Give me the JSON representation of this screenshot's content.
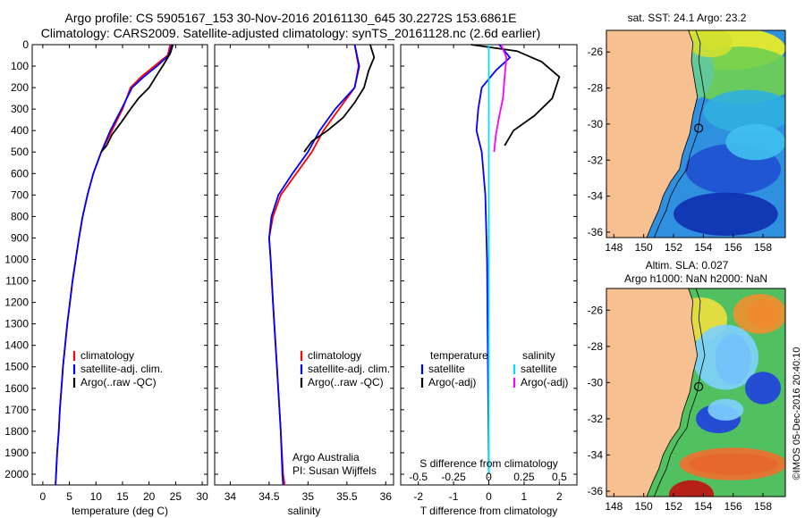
{
  "header": {
    "line1": "Argo profile: CS 5905167_153 30-Nov-2016 20161130_645 30.2272S 153.6861E",
    "line2": "Climatology: CARS2009. Satellite-adjusted climatology: synTS_20161128.nc (2.6d earlier)"
  },
  "footer": {
    "credit": "©IMOS 05-Dec-2016 20:40:10"
  },
  "colors": {
    "climatology": "#ff0000",
    "satellite": "#0000ff",
    "argo": "#000000",
    "sal_satellite": "#00e0ff",
    "sal_argo": "#ff00ff",
    "land": "#f7c090"
  },
  "chart_data": [
    {
      "type": "line",
      "name": "temperature-panel",
      "xlabel": "temperature (deg C)",
      "ylabel": "",
      "xlim": [
        -2,
        31
      ],
      "ylim": [
        2050,
        0
      ],
      "xticks": [
        0,
        5,
        10,
        15,
        20,
        25,
        30
      ],
      "yticks": [
        0,
        100,
        200,
        300,
        400,
        500,
        600,
        700,
        800,
        900,
        1000,
        1100,
        1200,
        1300,
        1400,
        1500,
        1600,
        1700,
        1800,
        1900,
        2000
      ],
      "legend": [
        "climatology",
        "satellite-adj. clim.",
        "Argo(..raw -QC)"
      ],
      "series": [
        {
          "name": "climatology",
          "color": "#ff0000",
          "points": [
            [
              24,
              0
            ],
            [
              23.5,
              50
            ],
            [
              21,
              100
            ],
            [
              18.5,
              150
            ],
            [
              16.5,
              200
            ],
            [
              15,
              300
            ],
            [
              13,
              400
            ],
            [
              11,
              500
            ],
            [
              9.5,
              600
            ],
            [
              8.4,
              700
            ],
            [
              7.5,
              800
            ],
            [
              6.8,
              900
            ],
            [
              6.2,
              1000
            ],
            [
              5.6,
              1100
            ],
            [
              5.1,
              1200
            ],
            [
              4.6,
              1300
            ],
            [
              4.2,
              1400
            ],
            [
              3.8,
              1500
            ],
            [
              3.5,
              1600
            ],
            [
              3.2,
              1700
            ],
            [
              3,
              1800
            ],
            [
              2.7,
              1900
            ],
            [
              2.5,
              2000
            ],
            [
              2.4,
              2050
            ]
          ]
        },
        {
          "name": "satellite-adj. clim.",
          "color": "#0000ff",
          "points": [
            [
              24.3,
              0
            ],
            [
              23.7,
              50
            ],
            [
              21.5,
              100
            ],
            [
              19,
              150
            ],
            [
              16.8,
              200
            ],
            [
              14.8,
              300
            ],
            [
              12.7,
              400
            ],
            [
              11,
              500
            ],
            [
              9.5,
              600
            ],
            [
              8.4,
              700
            ],
            [
              7.5,
              800
            ],
            [
              6.8,
              900
            ],
            [
              6.2,
              1000
            ],
            [
              5.6,
              1100
            ],
            [
              5.1,
              1200
            ],
            [
              4.6,
              1300
            ],
            [
              4.2,
              1400
            ],
            [
              3.8,
              1500
            ],
            [
              3.5,
              1600
            ],
            [
              3.2,
              1700
            ],
            [
              3,
              1800
            ],
            [
              2.7,
              1900
            ],
            [
              2.5,
              2000
            ],
            [
              2.4,
              2050
            ]
          ]
        },
        {
          "name": "Argo(..raw -QC)",
          "color": "#000000",
          "points": [
            [
              24.5,
              0
            ],
            [
              24,
              40
            ],
            [
              22.8,
              90
            ],
            [
              21.5,
              140
            ],
            [
              20,
              200
            ],
            [
              18,
              250
            ],
            [
              16.5,
              300
            ],
            [
              14.8,
              360
            ],
            [
              13,
              420
            ],
            [
              12,
              470
            ],
            [
              11,
              500
            ]
          ]
        }
      ]
    },
    {
      "type": "line",
      "name": "salinity-panel",
      "xlabel": "salinity",
      "ylabel": "",
      "xlim": [
        33.8,
        36.1
      ],
      "ylim": [
        2050,
        0
      ],
      "xticks": [
        34,
        34.5,
        35,
        35.5,
        36
      ],
      "legend": [
        "climatology",
        "satellite-adj. clim.",
        "Argo(..raw -QC)"
      ],
      "annotation": [
        "Argo Australia",
        "PI: Susan Wijffels"
      ],
      "series": [
        {
          "name": "climatology",
          "color": "#ff0000",
          "points": [
            [
              35.6,
              0
            ],
            [
              35.65,
              100
            ],
            [
              35.6,
              200
            ],
            [
              35.4,
              300
            ],
            [
              35.2,
              400
            ],
            [
              35.05,
              500
            ],
            [
              34.85,
              600
            ],
            [
              34.65,
              700
            ],
            [
              34.55,
              800
            ],
            [
              34.5,
              900
            ],
            [
              34.52,
              1000
            ],
            [
              34.55,
              1200
            ],
            [
              34.6,
              1500
            ],
            [
              34.65,
              1800
            ],
            [
              34.68,
              2000
            ],
            [
              34.7,
              2050
            ]
          ]
        },
        {
          "name": "satellite-adj. clim.",
          "color": "#0000ff",
          "points": [
            [
              35.6,
              0
            ],
            [
              35.66,
              100
            ],
            [
              35.6,
              200
            ],
            [
              35.35,
              300
            ],
            [
              35.15,
              400
            ],
            [
              35,
              500
            ],
            [
              34.8,
              600
            ],
            [
              34.62,
              700
            ],
            [
              34.53,
              800
            ],
            [
              34.5,
              900
            ],
            [
              34.52,
              1000
            ],
            [
              34.55,
              1200
            ],
            [
              34.6,
              1500
            ],
            [
              34.65,
              1800
            ],
            [
              34.67,
              2000
            ],
            [
              34.68,
              2050
            ]
          ]
        },
        {
          "name": "Argo(..raw -QC)",
          "color": "#000000",
          "points": [
            [
              35.8,
              0
            ],
            [
              35.85,
              60
            ],
            [
              35.78,
              120
            ],
            [
              35.72,
              200
            ],
            [
              35.6,
              270
            ],
            [
              35.45,
              340
            ],
            [
              35.25,
              400
            ],
            [
              35.05,
              450
            ],
            [
              34.95,
              500
            ]
          ]
        }
      ]
    },
    {
      "type": "line",
      "name": "difference-panel",
      "xlabel": "T difference from climatology",
      "xlabel_top": "S difference from climatology",
      "xlim": [
        -2.5,
        2.5
      ],
      "ylim": [
        2050,
        0
      ],
      "xticks": [
        -2,
        -1,
        0,
        1,
        2
      ],
      "sticks": [
        "-0.5",
        "-0.25",
        "0",
        "0.25",
        "0.5"
      ],
      "legend_temp_title": "temperature",
      "legend_sal_title": "salinity",
      "legend": [
        "satellite",
        "Argo(-adj)",
        "satellite",
        "Argo(-adj)"
      ],
      "series": [
        {
          "name": "satellite (T)",
          "color": "#0000ff",
          "points": [
            [
              0.3,
              0
            ],
            [
              0.6,
              60
            ],
            [
              0.2,
              120
            ],
            [
              -0.2,
              200
            ],
            [
              -0.3,
              300
            ],
            [
              -0.35,
              400
            ],
            [
              -0.2,
              500
            ],
            [
              -0.1,
              700
            ],
            [
              -0.05,
              1000
            ],
            [
              0,
              2000
            ]
          ]
        },
        {
          "name": "Argo(-adj) (T)",
          "color": "#000000",
          "points": [
            [
              -0.5,
              0
            ],
            [
              0.8,
              30
            ],
            [
              1.5,
              80
            ],
            [
              2,
              150
            ],
            [
              1.8,
              250
            ],
            [
              1.3,
              330
            ],
            [
              0.7,
              400
            ],
            [
              0.45,
              470
            ]
          ]
        },
        {
          "name": "satellite (S)",
          "color": "#00e0ff",
          "points": [
            [
              0,
              0
            ],
            [
              0,
              100
            ],
            [
              0,
              300
            ],
            [
              0,
              500
            ],
            [
              0,
              1000
            ],
            [
              0,
              2000
            ]
          ]
        },
        {
          "name": "Argo(-adj) (S)",
          "color": "#ff00ff",
          "points": [
            [
              0.35,
              0
            ],
            [
              0.5,
              60
            ],
            [
              0.45,
              150
            ],
            [
              0.4,
              250
            ],
            [
              0.3,
              330
            ],
            [
              0.2,
              420
            ],
            [
              0.15,
              500
            ]
          ]
        }
      ]
    },
    {
      "type": "heatmap",
      "name": "sst-map",
      "title": "sat. SST: 24.1  Argo: 23.2",
      "xlim": [
        147.5,
        159.5
      ],
      "ylim": [
        -36.3,
        -24.8
      ],
      "xticks": [
        "148",
        "150",
        "152",
        "154",
        "156",
        "158"
      ],
      "yticks": [
        "-26",
        "-28",
        "-30",
        "-32",
        "-34",
        "-36"
      ],
      "float_position": [
        153.6861,
        -30.2272
      ]
    },
    {
      "type": "heatmap",
      "name": "sla-map",
      "title": "Altim. SLA: 0.027",
      "subtitle": "Argo h1000: NaN h2000: NaN",
      "xlim": [
        147.5,
        159.5
      ],
      "ylim": [
        -36.3,
        -24.8
      ],
      "xticks": [
        "148",
        "150",
        "152",
        "154",
        "156",
        "158"
      ],
      "yticks": [
        "-26",
        "-28",
        "-30",
        "-32",
        "-34",
        "-36"
      ],
      "float_position": [
        153.6861,
        -30.2272
      ]
    }
  ]
}
